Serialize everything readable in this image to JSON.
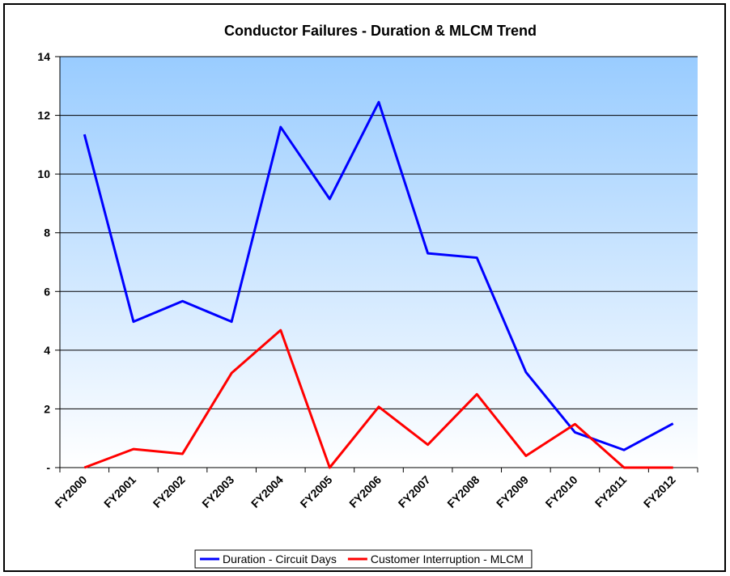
{
  "chart_data": {
    "type": "line",
    "title": "Conductor Failures - Duration & MLCM Trend",
    "categories": [
      "FY2000",
      "FY2001",
      "FY2002",
      "FY2003",
      "FY2004",
      "FY2005",
      "FY2006",
      "FY2007",
      "FY2008",
      "FY2009",
      "FY2010",
      "FY2011",
      "FY2012"
    ],
    "series": [
      {
        "name": "Duration - Circuit Days",
        "color": "#0000ff",
        "values": [
          11.35,
          4.97,
          5.67,
          4.97,
          11.6,
          9.15,
          12.45,
          7.3,
          7.15,
          3.25,
          1.2,
          0.6,
          1.5
        ]
      },
      {
        "name": "Customer Interruption - MLCM",
        "color": "#ff0000",
        "values": [
          0,
          0.63,
          0.47,
          3.22,
          4.68,
          0,
          2.07,
          0.78,
          2.5,
          0.4,
          1.48,
          0,
          0
        ]
      }
    ],
    "ylim": [
      0,
      14
    ],
    "yticks": [
      {
        "value": 0,
        "label": "-"
      },
      2,
      4,
      6,
      8,
      10,
      12,
      14
    ],
    "grid": true,
    "legend": "bottom"
  }
}
